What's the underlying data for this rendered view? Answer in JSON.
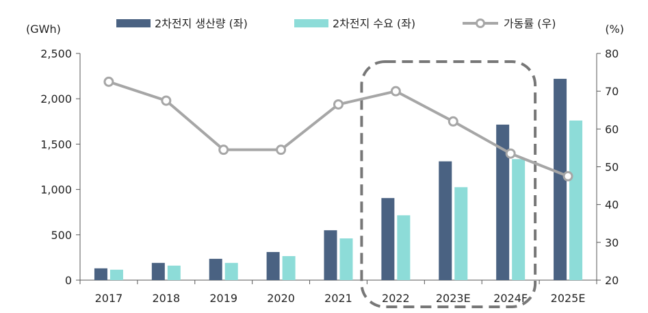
{
  "chart_data": {
    "type": "bar",
    "categories": [
      "2017",
      "2018",
      "2019",
      "2020",
      "2021",
      "2022",
      "2023E",
      "2024F",
      "2025E"
    ],
    "series": [
      {
        "name": "2차전지 생산량 (좌)",
        "type": "bar",
        "axis": "left",
        "color": "#4a6282",
        "values": [
          130,
          190,
          235,
          310,
          550,
          905,
          1310,
          1715,
          2220
        ]
      },
      {
        "name": "2차전지 수요 (좌)",
        "type": "bar",
        "axis": "left",
        "color": "#8ddcd8",
        "values": [
          115,
          160,
          190,
          265,
          460,
          715,
          1025,
          1335,
          1760
        ]
      },
      {
        "name": "가동률 (우)",
        "type": "line",
        "axis": "right",
        "color": "#a6a6a6",
        "values": [
          72.5,
          67.5,
          54.5,
          54.5,
          66.5,
          70,
          62,
          53.5,
          47.5
        ]
      }
    ],
    "left_axis": {
      "unit": "(GWh)",
      "ylim": [
        0,
        2500
      ],
      "ticks": [
        "0",
        "500",
        "1,000",
        "1,500",
        "2,000",
        "2,500"
      ],
      "tick_values": [
        0,
        500,
        1000,
        1500,
        2000,
        2500
      ]
    },
    "right_axis": {
      "unit": "(%)",
      "ylim": [
        20,
        80
      ],
      "ticks": [
        "20",
        "30",
        "40",
        "50",
        "60",
        "70",
        "80"
      ],
      "tick_values": [
        20,
        30,
        40,
        50,
        60,
        70,
        80
      ]
    },
    "grid": false,
    "legend": "top",
    "highlight": {
      "style": "dashed rounded box",
      "from_category": "2022",
      "to_category": "2025E"
    }
  }
}
